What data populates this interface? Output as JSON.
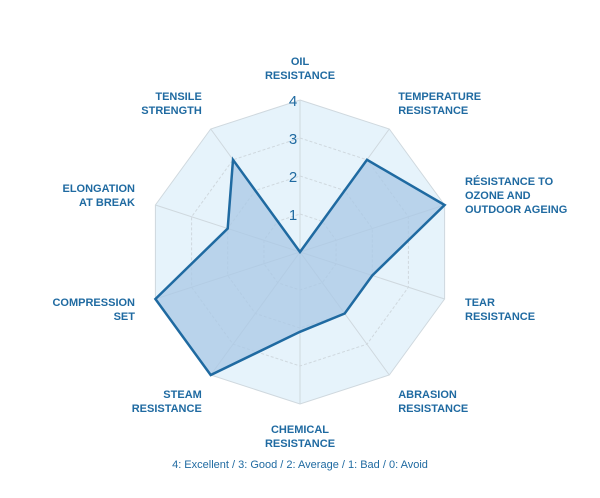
{
  "chart_data": {
    "type": "radar",
    "categories": [
      [
        "OIL",
        "RESISTANCE"
      ],
      [
        "TEMPERATURE",
        "RESISTANCE"
      ],
      [
        "RÉSISTANCE TO",
        "OZONE AND",
        "OUTDOOR AGEING"
      ],
      [
        "TEAR",
        "RESISTANCE"
      ],
      [
        "ABRASION",
        "RESISTANCE"
      ],
      [
        "CHEMICAL",
        "RESISTANCE"
      ],
      [
        "STEAM",
        "RESISTANCE"
      ],
      [
        "COMPRESSION",
        "SET"
      ],
      [
        "ELONGATION",
        "AT BREAK"
      ],
      [
        "TENSILE",
        "STRENGTH"
      ]
    ],
    "values": [
      0,
      3,
      4,
      2,
      2,
      2.1,
      4,
      4,
      2,
      3
    ],
    "rlim": [
      0,
      4
    ],
    "ticks": [
      "1",
      "2",
      "3",
      "4"
    ],
    "caption": "4: Excellent / 3: Good / 2: Average / 1: Bad / 0: Avoid",
    "colors": {
      "ring_fill": "#e6f3fb",
      "grid": "#cfd8de",
      "series_stroke": "#1f6aa1",
      "series_fill": "#a9c8e6",
      "text": "#1f6aa1"
    }
  }
}
